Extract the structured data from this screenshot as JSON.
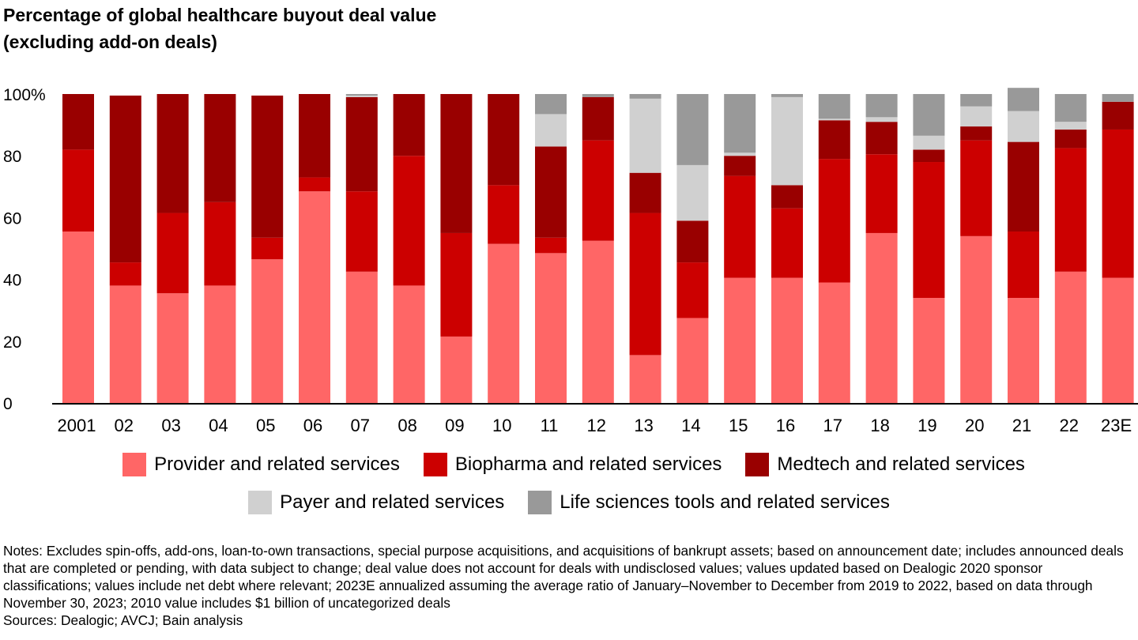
{
  "title": {
    "line1": "Percentage of global healthcare buyout deal value",
    "line2": "(excluding add-on deals)"
  },
  "chart_data": {
    "type": "bar",
    "stacked": true,
    "categories": [
      "2001",
      "02",
      "03",
      "04",
      "05",
      "06",
      "07",
      "08",
      "09",
      "10",
      "11",
      "12",
      "13",
      "14",
      "15",
      "16",
      "17",
      "18",
      "19",
      "20",
      "21",
      "22",
      "23E"
    ],
    "series": [
      {
        "name": "Provider and related services",
        "color": "#ff6666",
        "values": [
          55.5,
          38,
          35.5,
          38,
          46.5,
          68.5,
          42.5,
          38,
          21.5,
          51.5,
          48.5,
          52.5,
          15.5,
          27.5,
          40.5,
          40.5,
          39,
          55,
          34,
          54,
          34,
          42.5,
          40.5
        ]
      },
      {
        "name": "Biopharma and related services",
        "color": "#cc0000",
        "values": [
          26.5,
          7.5,
          26,
          27,
          7,
          4.5,
          26,
          42,
          33.5,
          19,
          5,
          32.5,
          46,
          18,
          33,
          22.5,
          40,
          25.5,
          44,
          31,
          21.5,
          40,
          48
        ]
      },
      {
        "name": "Medtech and related services",
        "color": "#990000",
        "values": [
          18,
          54,
          38.5,
          35,
          46,
          27,
          30.5,
          20,
          45,
          29.5,
          29.5,
          14,
          13,
          13.5,
          6.5,
          7.5,
          12.5,
          10.5,
          4,
          4.5,
          29,
          6,
          9
        ]
      },
      {
        "name": "Payer and related services",
        "color": "#d0d0d0",
        "values": [
          0,
          0,
          0,
          0,
          0,
          0,
          0.5,
          0,
          0,
          0,
          10.5,
          0,
          24,
          18,
          1,
          28.5,
          0.5,
          1.5,
          4.5,
          6.5,
          10,
          2.5,
          0
        ]
      },
      {
        "name": "Life sciences tools and related services",
        "color": "#999999",
        "values": [
          0,
          0,
          0,
          0,
          0,
          0,
          0.5,
          0,
          0,
          0,
          6.5,
          1,
          1.5,
          23,
          19,
          1,
          8,
          7.5,
          13.5,
          4,
          7.5,
          9,
          2.5
        ]
      }
    ],
    "yticks": [
      "100%",
      "80",
      "60",
      "40",
      "20",
      "0"
    ],
    "ylim": [
      0,
      100
    ],
    "legend_position": "bottom"
  },
  "legend": {
    "row1": [
      "Provider and related services",
      "Biopharma and related services",
      "Medtech and related services"
    ],
    "row2": [
      "Payer and related services",
      "Life sciences tools and related services"
    ],
    "colors": [
      "#ff6666",
      "#cc0000",
      "#990000",
      "#d0d0d0",
      "#999999"
    ]
  },
  "notes": {
    "text": "Notes: Excludes spin-offs, add-ons, loan-to-own transactions, special purpose acquisitions, and acquisitions of bankrupt assets; based on announcement date; includes announced deals that are completed or pending, with data subject to change; deal value does not account for deals with undisclosed values; values updated based on Dealogic 2020 sponsor classifications; values include net debt where relevant; 2023E annualized assuming the average ratio of January–November to December from 2019 to 2022, based on data through November 30, 2023; 2010 value includes $1 billion of uncategorized deals",
    "sources": "Sources: Dealogic; AVCJ; Bain analysis"
  }
}
